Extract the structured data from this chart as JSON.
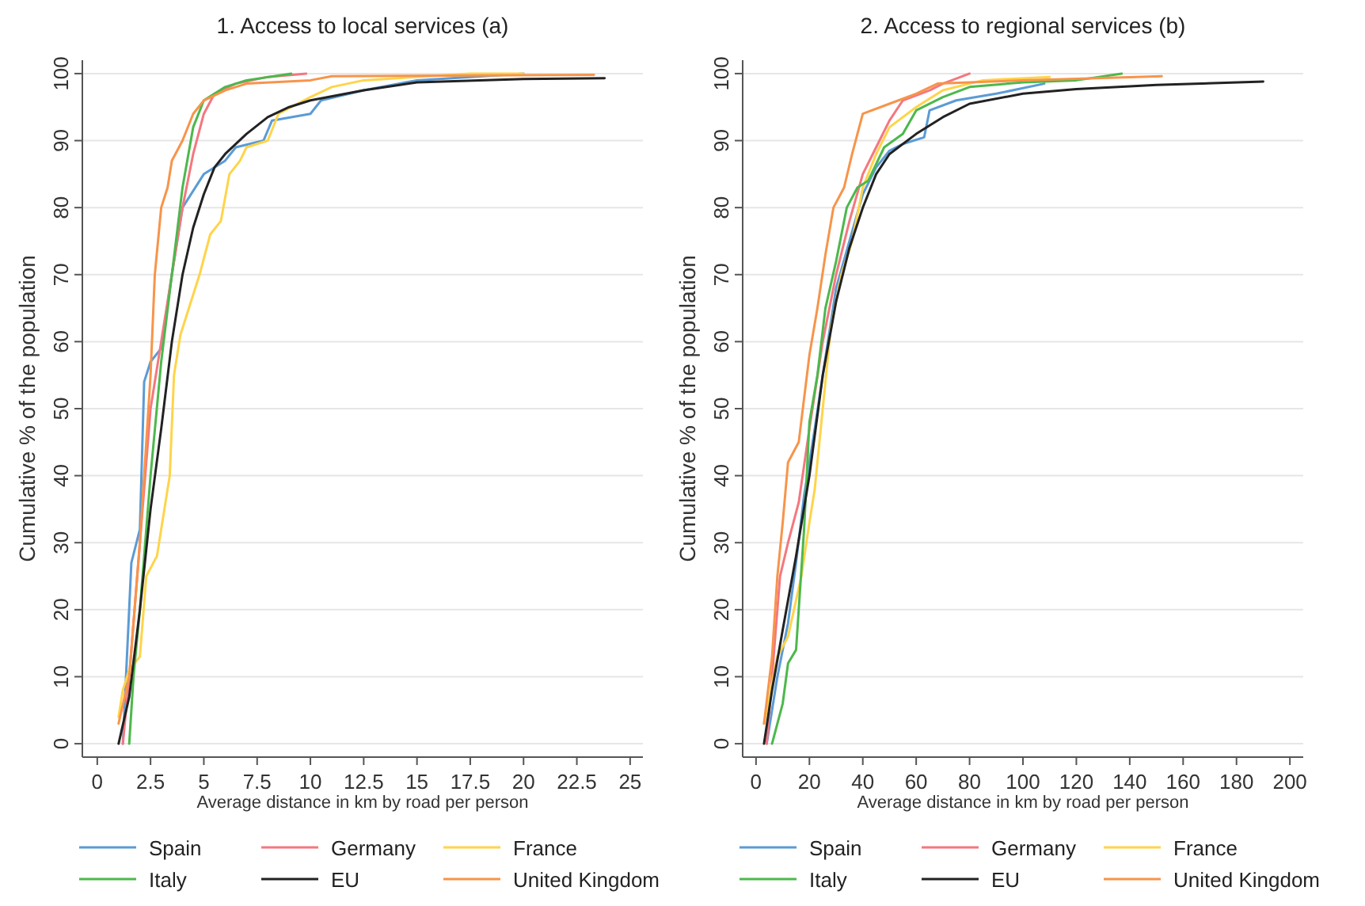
{
  "chart_data": [
    {
      "type": "line",
      "title": "1. Access to local services (a)",
      "xlabel": "Average distance in km by road per person",
      "ylabel": "Cumulative % of the population",
      "xlim": [
        -0.7,
        25.6
      ],
      "xticks": [
        0,
        2.5,
        5,
        7.5,
        10,
        12.5,
        15,
        17.5,
        20,
        22.5,
        25
      ],
      "ylim": [
        -2,
        102
      ],
      "yticks": [
        0,
        10,
        20,
        30,
        40,
        50,
        60,
        70,
        80,
        90,
        100
      ],
      "grid": "y",
      "legend": "bottom",
      "line_style": "solid",
      "marker": "none",
      "series": [
        {
          "name": "Spain",
          "color": "#5b9bd5",
          "x": [
            1.2,
            1.6,
            2.0,
            2.2,
            2.5,
            3.0,
            3.5,
            4.0,
            5.0,
            6.0,
            6.5,
            7.8,
            8.2,
            10,
            10.5,
            12.5,
            15,
            20
          ],
          "values": [
            0,
            27,
            32,
            54,
            57,
            59,
            70,
            80,
            85,
            87,
            89,
            90,
            93,
            94,
            96,
            97.5,
            99,
            100
          ]
        },
        {
          "name": "Germany",
          "color": "#f4777f",
          "x": [
            1.2,
            1.5,
            2.0,
            2.5,
            3,
            3.5,
            4,
            4.5,
            5,
            5.5,
            6.5,
            8,
            9.8
          ],
          "values": [
            0,
            10,
            30,
            50,
            60,
            70,
            80,
            88,
            94,
            97,
            98.5,
            99.5,
            100
          ]
        },
        {
          "name": "France",
          "color": "#ffd44a",
          "x": [
            1.0,
            1.2,
            1.5,
            2.0,
            2.3,
            2.8,
            3.0,
            3.4,
            3.6,
            3.9,
            4.3,
            4.8,
            5.3,
            5.8,
            6.2,
            6.7,
            7,
            8,
            8.5,
            10,
            11,
            12.5,
            17.5,
            20
          ],
          "values": [
            4,
            8,
            11,
            13,
            25,
            28,
            32,
            40,
            55,
            61,
            65,
            70,
            76,
            78,
            85,
            87,
            89,
            90,
            94,
            96.5,
            98,
            99,
            100,
            100
          ]
        },
        {
          "name": "Italy",
          "color": "#4cb84c",
          "x": [
            1.5,
            1.7,
            2,
            2.5,
            3,
            3.5,
            4,
            4.5,
            5,
            6,
            7,
            9.1
          ],
          "values": [
            0,
            10,
            20,
            40,
            57,
            70,
            83,
            92,
            96,
            98,
            99,
            100
          ]
        },
        {
          "name": "EU",
          "color": "#222222",
          "x": [
            1.0,
            1.5,
            2,
            2.5,
            3,
            3.5,
            4,
            4.5,
            5,
            5.5,
            6,
            7,
            8,
            9,
            10,
            12.5,
            15,
            20,
            23.8
          ],
          "values": [
            0,
            7,
            20,
            35,
            47,
            60,
            70,
            77,
            82,
            86,
            88,
            91,
            93.5,
            95,
            96,
            97.5,
            98.7,
            99.2,
            99.3
          ]
        },
        {
          "name": "United Kingdom",
          "color": "#f7944a",
          "x": [
            1.0,
            1.5,
            2.0,
            2.3,
            2.5,
            2.7,
            3,
            3.3,
            3.5,
            4,
            4.5,
            5,
            6,
            7,
            10,
            11,
            23.3
          ],
          "values": [
            3,
            10,
            30,
            45,
            55,
            70,
            80,
            83,
            87,
            90,
            94,
            96,
            97.5,
            98.5,
            99,
            99.6,
            99.8
          ]
        }
      ]
    },
    {
      "type": "line",
      "title": "2. Access to regional services (b)",
      "xlabel": "Average distance in km by road per person",
      "ylabel": "Cumulative % of the population",
      "xlim": [
        -5,
        205
      ],
      "xticks": [
        0,
        20,
        40,
        60,
        80,
        100,
        120,
        140,
        160,
        180,
        200
      ],
      "ylim": [
        -2,
        102
      ],
      "yticks": [
        0,
        10,
        20,
        30,
        40,
        50,
        60,
        70,
        80,
        90,
        100
      ],
      "grid": "y",
      "legend": "bottom",
      "line_style": "solid",
      "marker": "none",
      "series": [
        {
          "name": "Spain",
          "color": "#5b9bd5",
          "x": [
            4,
            8,
            12,
            15,
            18,
            22,
            25,
            30,
            35,
            40,
            45,
            50,
            55,
            63,
            65,
            75,
            90,
            108
          ],
          "values": [
            0,
            10,
            18,
            27,
            37,
            47,
            55,
            68,
            75,
            82,
            86,
            88.5,
            89.5,
            90.5,
            94.5,
            96,
            97,
            98.5
          ]
        },
        {
          "name": "Germany",
          "color": "#f4777f",
          "x": [
            4,
            7,
            9,
            12,
            16,
            20,
            25,
            30,
            35,
            40,
            45,
            50,
            55,
            65,
            70,
            80
          ],
          "values": [
            0,
            15,
            25,
            30,
            36,
            47,
            60,
            70,
            78,
            85,
            89,
            93,
            96,
            97.5,
            98.5,
            100
          ]
        },
        {
          "name": "France",
          "color": "#ffd44a",
          "x": [
            3,
            8,
            12,
            17,
            20,
            22,
            25,
            28,
            32,
            36,
            40,
            45,
            50,
            60,
            70,
            85,
            110
          ],
          "values": [
            3,
            13,
            16,
            25,
            33,
            38,
            50,
            62,
            70,
            75,
            83,
            88,
            92,
            95,
            97.5,
            99,
            99.5
          ]
        },
        {
          "name": "Italy",
          "color": "#4cb84c",
          "x": [
            6,
            10,
            12,
            15,
            18,
            20,
            23,
            26,
            30,
            34,
            38,
            42,
            48,
            55,
            60,
            70,
            80,
            100,
            120,
            137
          ],
          "values": [
            0,
            6,
            12,
            14,
            32,
            48,
            55,
            65,
            72,
            80,
            83,
            84,
            89,
            91,
            94.5,
            96.5,
            98,
            98.7,
            99,
            100
          ]
        },
        {
          "name": "EU",
          "color": "#222222",
          "x": [
            3,
            6,
            10,
            15,
            20,
            25,
            30,
            35,
            40,
            45,
            50,
            60,
            70,
            80,
            100,
            120,
            150,
            190
          ],
          "values": [
            0,
            8,
            17,
            28,
            40,
            55,
            66,
            74,
            80,
            85,
            88,
            91,
            93.5,
            95.5,
            97,
            97.7,
            98.3,
            98.8
          ]
        },
        {
          "name": "United Kingdom",
          "color": "#f7944a",
          "x": [
            3,
            6,
            8,
            10,
            12,
            16,
            20,
            23,
            26,
            29,
            33,
            36,
            40,
            50,
            60,
            68,
            100,
            152
          ],
          "values": [
            3,
            13,
            25,
            33,
            42,
            45,
            58,
            65,
            73,
            80,
            83,
            88,
            94,
            95.5,
            97,
            98.5,
            99,
            99.6
          ]
        }
      ]
    }
  ]
}
